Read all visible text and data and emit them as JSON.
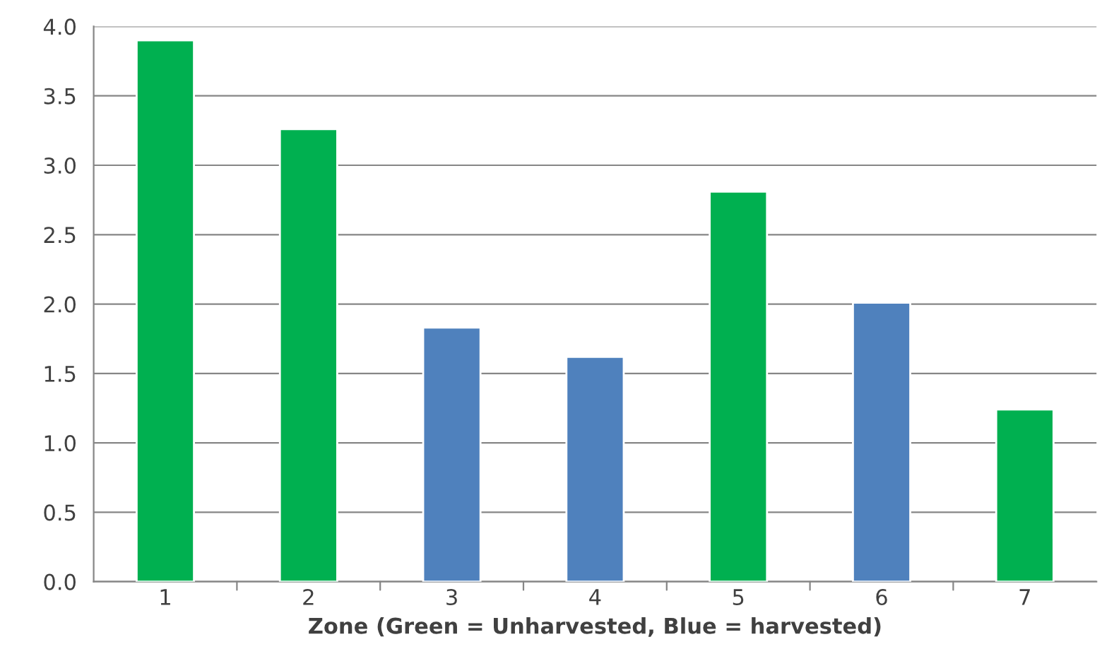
{
  "chart_data": {
    "type": "bar",
    "xlabel": "Zone (Green = Unharvested, Blue = harvested)",
    "categories": [
      "1",
      "2",
      "3",
      "4",
      "5",
      "6",
      "7"
    ],
    "values": [
      3.9,
      3.26,
      1.83,
      1.62,
      2.81,
      2.01,
      1.24
    ],
    "colors": [
      "#00b050",
      "#00b050",
      "#4f81bd",
      "#4f81bd",
      "#00b050",
      "#4f81bd",
      "#00b050"
    ],
    "ylim": [
      0,
      4.0
    ],
    "yticks": [
      {
        "value": 0,
        "label": "0.0"
      },
      {
        "value": 0.5,
        "label": "0.5"
      },
      {
        "value": 1.0,
        "label": "1.0"
      },
      {
        "value": 1.5,
        "label": "1.5"
      },
      {
        "value": 2.0,
        "label": "2.0"
      },
      {
        "value": 2.5,
        "label": "2.5"
      },
      {
        "value": 3.0,
        "label": "3.0"
      },
      {
        "value": 3.5,
        "label": "3.5"
      },
      {
        "value": 4.0,
        "label": "4.0"
      }
    ],
    "grid": "y"
  }
}
